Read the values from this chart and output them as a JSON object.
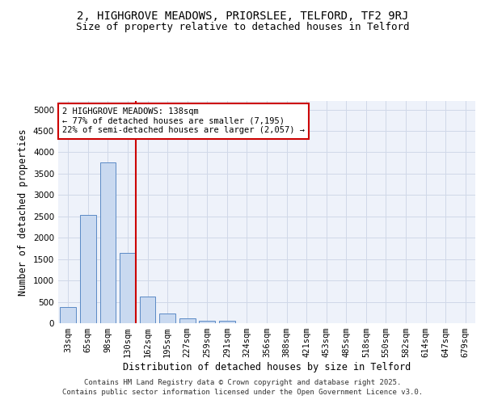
{
  "title_line1": "2, HIGHGROVE MEADOWS, PRIORSLEE, TELFORD, TF2 9RJ",
  "title_line2": "Size of property relative to detached houses in Telford",
  "xlabel": "Distribution of detached houses by size in Telford",
  "ylabel": "Number of detached properties",
  "categories": [
    "33sqm",
    "65sqm",
    "98sqm",
    "130sqm",
    "162sqm",
    "195sqm",
    "227sqm",
    "259sqm",
    "291sqm",
    "324sqm",
    "356sqm",
    "388sqm",
    "421sqm",
    "453sqm",
    "485sqm",
    "518sqm",
    "550sqm",
    "582sqm",
    "614sqm",
    "647sqm",
    "679sqm"
  ],
  "values": [
    380,
    2530,
    3760,
    1650,
    620,
    230,
    110,
    60,
    50,
    0,
    0,
    0,
    0,
    0,
    0,
    0,
    0,
    0,
    0,
    0,
    0
  ],
  "bar_color": "#c9d9f0",
  "bar_edge_color": "#5b8ac5",
  "vline_color": "#cc0000",
  "annotation_text": "2 HIGHGROVE MEADOWS: 138sqm\n← 77% of detached houses are smaller (7,195)\n22% of semi-detached houses are larger (2,057) →",
  "annotation_box_color": "#ffffff",
  "annotation_box_edge_color": "#cc0000",
  "ylim": [
    0,
    5200
  ],
  "yticks": [
    0,
    500,
    1000,
    1500,
    2000,
    2500,
    3000,
    3500,
    4000,
    4500,
    5000
  ],
  "grid_color": "#d0d8e8",
  "background_color": "#eef2fa",
  "footer_text": "Contains HM Land Registry data © Crown copyright and database right 2025.\nContains public sector information licensed under the Open Government Licence v3.0.",
  "title_fontsize": 10,
  "subtitle_fontsize": 9,
  "axis_label_fontsize": 8.5,
  "tick_fontsize": 7.5,
  "annotation_fontsize": 7.5,
  "footer_fontsize": 6.5
}
